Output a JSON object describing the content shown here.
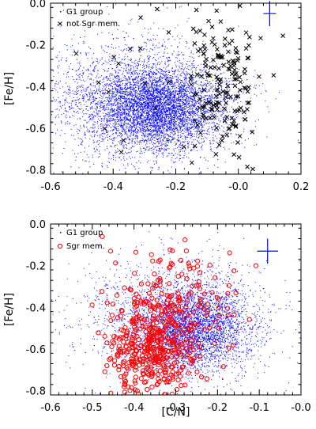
{
  "chart_data": [
    {
      "type": "scatter",
      "xlabel": "",
      "ylabel": "[Fe/H]",
      "xlim": [
        -0.6,
        0.2
      ],
      "ylim": [
        -0.82,
        0.0
      ],
      "xticks": [
        "-0.6",
        "-0.4",
        "-0.2",
        "-0.0",
        "0.2"
      ],
      "xtick_values": [
        -0.6,
        -0.4,
        -0.2,
        0.0,
        0.2
      ],
      "yticks": [
        "0.0",
        "-0.2",
        "-0.4",
        "-0.6",
        "-0.8"
      ],
      "ytick_values": [
        0.0,
        -0.2,
        -0.4,
        -0.6,
        -0.8
      ],
      "legend_position": "top-left",
      "grid": false,
      "error_bar": {
        "x": 0.1,
        "y": -0.05,
        "dx": 0.02,
        "dy": 0.06,
        "color": "#0000ff"
      },
      "series": [
        {
          "name": "G1 group",
          "marker": "dot",
          "color": "#0000ff",
          "approx_count": 7000,
          "density_components": [
            {
              "weight": 0.7,
              "x_mean": -0.25,
              "x_sd": 0.1,
              "y_mean": -0.5,
              "y_sd": 0.1
            },
            {
              "weight": 0.3,
              "x_mean": -0.35,
              "x_sd": 0.15,
              "y_mean": -0.45,
              "y_sd": 0.15
            }
          ]
        },
        {
          "name": "not Sgr mem.",
          "marker": "x",
          "color": "#000000",
          "approx_count": 200,
          "density_components": [
            {
              "weight": 0.8,
              "x_mean": -0.04,
              "x_sd": 0.05,
              "y_mean": -0.38,
              "y_sd": 0.17
            },
            {
              "weight": 0.2,
              "x_mean": -0.15,
              "x_sd": 0.2,
              "y_mean": -0.3,
              "y_sd": 0.25
            }
          ]
        }
      ]
    },
    {
      "type": "scatter",
      "xlabel": "[C/N]",
      "ylabel": "[Fe/H]",
      "xlim": [
        -0.6,
        0.0
      ],
      "ylim": [
        -0.82,
        0.0
      ],
      "xticks": [
        "-0.6",
        "-0.5",
        "-0.4",
        "-0.3",
        "-0.2",
        "-0.1",
        "-0.0"
      ],
      "xtick_values": [
        -0.6,
        -0.5,
        -0.4,
        -0.3,
        -0.2,
        -0.1,
        0.0
      ],
      "yticks": [
        "0.0",
        "-0.2",
        "-0.4",
        "-0.6",
        "-0.8"
      ],
      "ytick_values": [
        0.0,
        -0.2,
        -0.4,
        -0.6,
        -0.8
      ],
      "legend_position": "top-left",
      "grid": false,
      "error_bar": {
        "x": -0.08,
        "y": -0.13,
        "dx": 0.025,
        "dy": 0.06,
        "color": "#0000ff"
      },
      "series": [
        {
          "name": "G1 group",
          "marker": "dot",
          "color": "#0000ff",
          "approx_count": 5000,
          "density_components": [
            {
              "weight": 0.7,
              "x_mean": -0.26,
              "x_sd": 0.07,
              "y_mean": -0.5,
              "y_sd": 0.1
            },
            {
              "weight": 0.3,
              "x_mean": -0.3,
              "x_sd": 0.12,
              "y_mean": -0.45,
              "y_sd": 0.15
            }
          ]
        },
        {
          "name": "Sgr mem.",
          "marker": "open-circle",
          "color": "#ff0000",
          "approx_count": 550,
          "density_components": [
            {
              "weight": 0.55,
              "x_mean": -0.36,
              "x_sd": 0.05,
              "y_mean": -0.62,
              "y_sd": 0.1
            },
            {
              "weight": 0.45,
              "x_mean": -0.32,
              "x_sd": 0.07,
              "y_mean": -0.45,
              "y_sd": 0.15
            }
          ]
        }
      ]
    }
  ]
}
